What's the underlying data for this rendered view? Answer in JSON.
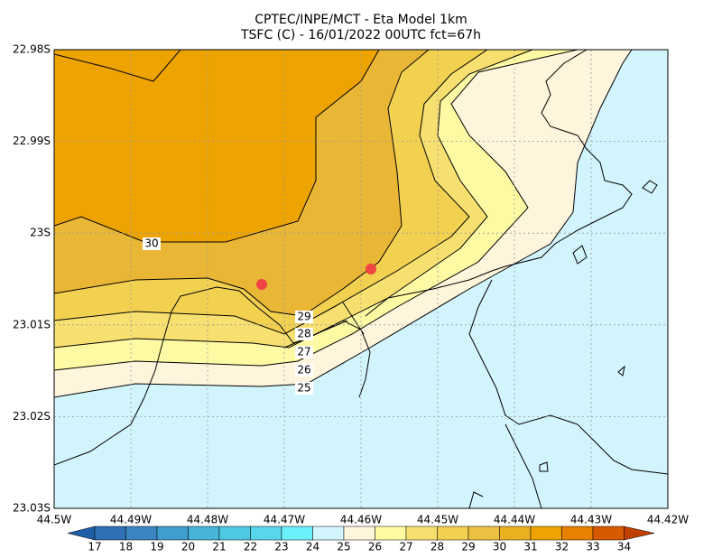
{
  "title": [
    "CPTEC/INPE/MCT -  Eta Model 1km",
    "TSFC (C) - 16/01/2022 00UTC fct=67h"
  ],
  "map": {
    "lat_labels": [
      "22.98S",
      "22.99S",
      "23S",
      "23.01S",
      "23.02S",
      "23.03S"
    ],
    "lon_labels": [
      "44.5W",
      "44.49W",
      "44.48W",
      "44.47W",
      "44.46W",
      "44.45W",
      "44.44W",
      "44.43W",
      "44.42W"
    ],
    "contour_labels": [
      "30",
      "29",
      "28",
      "27",
      "26",
      "25"
    ]
  },
  "colorbar": {
    "labels": [
      "17",
      "18",
      "19",
      "20",
      "21",
      "22",
      "23",
      "24",
      "25",
      "26",
      "27",
      "28",
      "29",
      "30",
      "31",
      "32",
      "33",
      "34"
    ]
  }
}
